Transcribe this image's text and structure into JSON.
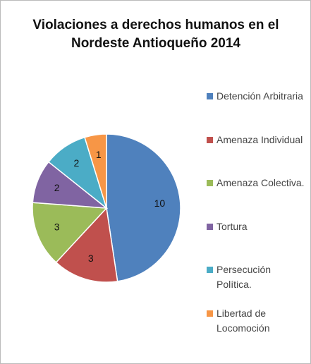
{
  "chart_data": {
    "type": "pie",
    "title": "Violaciones a derechos humanos en el Nordeste Antioqueño 2014",
    "categories": [
      "Detención Arbitraria",
      "Amenaza Individual",
      "Amenaza Colectiva.",
      "Tortura",
      "Persecución Política.",
      "Libertad de Locomoción"
    ],
    "values": [
      10,
      3,
      3,
      2,
      2,
      1
    ],
    "colors": [
      "#4f81bd",
      "#c0504d",
      "#9bbb59",
      "#8064a2",
      "#4bacc6",
      "#f79646"
    ],
    "legend": "right"
  }
}
